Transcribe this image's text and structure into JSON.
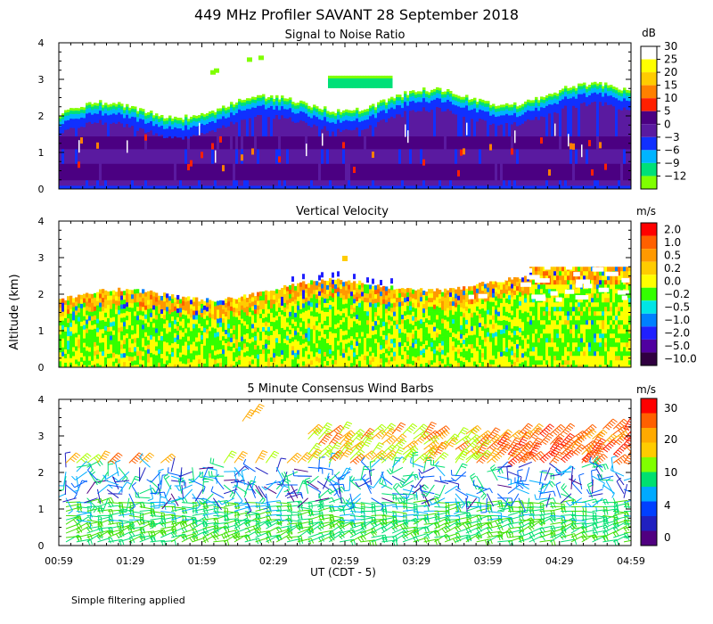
{
  "figure": {
    "title": "449 MHz Profiler SAVANT 28 September 2018",
    "ylabel": "Altitude (km)",
    "xlabel": "UT  (CDT - 5)",
    "xticks": [
      "00:59",
      "01:29",
      "01:59",
      "02:29",
      "02:59",
      "03:29",
      "03:59",
      "04:29",
      "04:59"
    ],
    "footer": "Simple filtering applied"
  },
  "chart_data": [
    {
      "type": "heatmap",
      "title": "Signal to Noise Ratio",
      "xlabel": "UT  (CDT - 5)",
      "ylabel": "Altitude (km)",
      "x_range": [
        "00:59",
        "04:59"
      ],
      "yticks": [
        "0",
        "1",
        "2",
        "3",
        "4"
      ],
      "ylim": [
        0,
        4
      ],
      "colorbar": {
        "unit": "dB",
        "labels": [
          "30",
          "25",
          "20",
          "15",
          "10",
          "5",
          "0",
          "−3",
          "−6",
          "−9",
          "−12"
        ],
        "colors": [
          "#ffffff",
          "#ffff00",
          "#ffcc00",
          "#ff8000",
          "#ff2000",
          "#4b0082",
          "#5a1aa0",
          "#1030ff",
          "#00b4ff",
          "#00e078",
          "#80ff00"
        ]
      },
      "profile": [
        {
          "altitude_km": [
            0.0,
            0.1
          ],
          "value": "−3"
        },
        {
          "altitude_km": [
            0.1,
            0.6
          ],
          "value": "10"
        },
        {
          "altitude_km": [
            0.6,
            1.4
          ],
          "value": "5"
        },
        {
          "altitude_km": [
            1.4,
            2.0
          ],
          "value": "0"
        },
        {
          "altitude_km": [
            2.0,
            2.3
          ],
          "value": "−6"
        },
        {
          "altitude_km": [
            2.3,
            2.6
          ],
          "value": "−9"
        },
        {
          "altitude_km": [
            2.8,
            3.1
          ],
          "value": "−9"
        }
      ]
    },
    {
      "type": "heatmap",
      "title": "Vertical Velocity",
      "xlabel": "UT  (CDT - 5)",
      "ylabel": "Altitude (km)",
      "x_range": [
        "00:59",
        "04:59"
      ],
      "yticks": [
        "0",
        "1",
        "2",
        "3",
        "4"
      ],
      "ylim": [
        0,
        4
      ],
      "colorbar": {
        "unit": "m/s",
        "labels": [
          "2.0",
          "1.0",
          "0.5",
          "0.2",
          "0.0",
          "−0.2",
          "−0.5",
          "−1.0",
          "−2.0",
          "−5.0",
          "−10.0"
        ],
        "colors": [
          "#ff0000",
          "#ff6000",
          "#ff9900",
          "#ffcc00",
          "#ffff00",
          "#33ff00",
          "#00e5e5",
          "#0080ff",
          "#2020ff",
          "#5000a0",
          "#300040"
        ]
      },
      "profile": [
        {
          "altitude_km": [
            0.0,
            0.3
          ],
          "value": "0.0"
        },
        {
          "altitude_km": [
            0.3,
            1.8
          ],
          "value": "−0.2"
        },
        {
          "altitude_km": [
            1.8,
            2.4
          ],
          "value": "0.2"
        },
        {
          "altitude_km": [
            2.6,
            2.9
          ],
          "value": "0.0"
        }
      ]
    },
    {
      "type": "wind_barbs",
      "title": "5 Minute Consensus Wind Barbs",
      "xlabel": "UT  (CDT - 5)",
      "ylabel": "Altitude (km)",
      "x_range": [
        "00:59",
        "04:59"
      ],
      "yticks": [
        "0",
        "1",
        "2",
        "3",
        "4"
      ],
      "ylim": [
        0,
        4
      ],
      "colorbar": {
        "unit": "m/s",
        "labels": [
          "30",
          "20",
          "10",
          "4",
          "0"
        ],
        "colors": [
          "#ff0000",
          "#ff6000",
          "#ffaa00",
          "#ffcc00",
          "#80ff00",
          "#00e070",
          "#00aaff",
          "#0040ff",
          "#2020c0",
          "#500080"
        ]
      },
      "speed_profile_mps": [
        {
          "altitude_km": [
            0.0,
            1.0
          ],
          "speed": 8
        },
        {
          "altitude_km": [
            1.0,
            2.2
          ],
          "speed": 6
        },
        {
          "altitude_km": [
            2.2,
            3.2
          ],
          "speed": 22
        }
      ]
    }
  ]
}
